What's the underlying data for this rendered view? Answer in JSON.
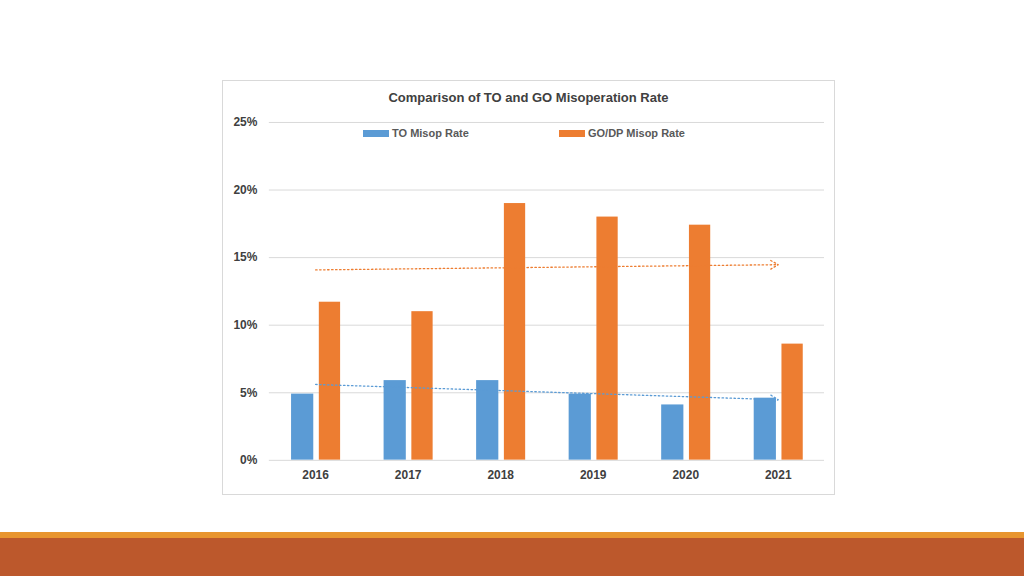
{
  "chart_data": {
    "type": "bar",
    "title": "Comparison of TO and GO Misoperation Rate",
    "categories": [
      "2016",
      "2017",
      "2018",
      "2019",
      "2020",
      "2021"
    ],
    "series": [
      {
        "name": "TO Misop Rate",
        "color": "#5B9BD5",
        "values": [
          4.9,
          5.9,
          5.9,
          4.9,
          4.1,
          4.6
        ]
      },
      {
        "name": "GO/DP Misop Rate",
        "color": "#ED7D31",
        "values": [
          11.7,
          11.0,
          19.0,
          18.0,
          17.4,
          8.6
        ]
      }
    ],
    "ylim": [
      0,
      25
    ],
    "yticks": [
      {
        "value": 0,
        "label": "0%"
      },
      {
        "value": 5,
        "label": "5%"
      },
      {
        "value": 10,
        "label": "10%"
      },
      {
        "value": 15,
        "label": "15%"
      },
      {
        "value": 20,
        "label": "20%"
      },
      {
        "value": 25,
        "label": "25%"
      }
    ],
    "grid": true,
    "legend": "top"
  }
}
